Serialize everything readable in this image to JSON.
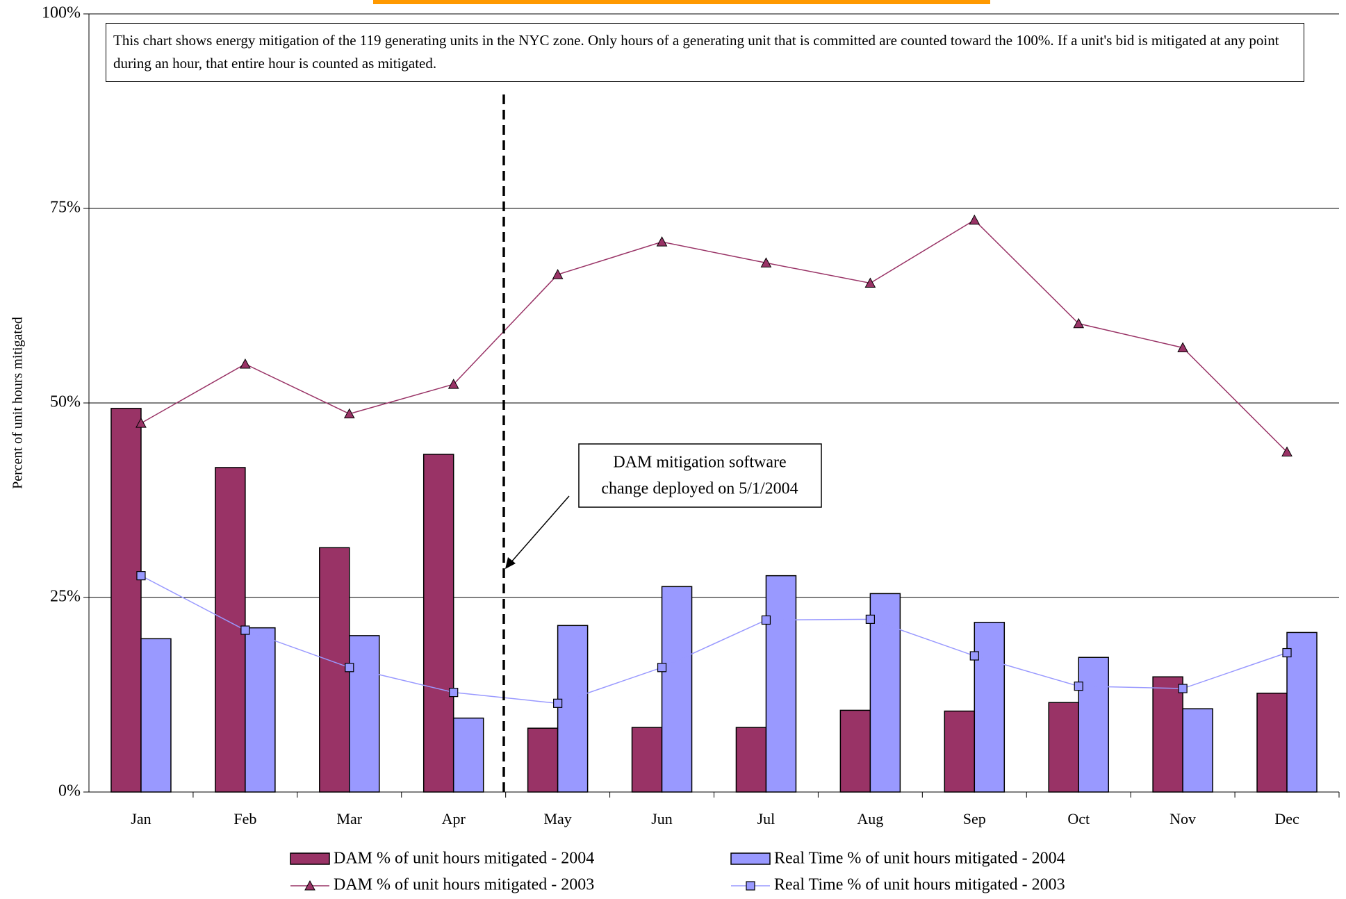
{
  "chart_data": {
    "type": "bar",
    "y_axis_label": "Percent of unit hours mitigated",
    "note": "This chart shows energy mitigation of the 119 generating units in the NYC zone.  Only hours of a generating unit that is committed are counted toward the 100%. If a unit's bid is mitigated at any point during an hour, that entire hour is counted as mitigated.",
    "annotation": [
      "DAM mitigation software",
      "change deployed on 5/1/2004"
    ],
    "categories": [
      "Jan",
      "Feb",
      "Mar",
      "Apr",
      "May",
      "Jun",
      "Jul",
      "Aug",
      "Sep",
      "Oct",
      "Nov",
      "Dec"
    ],
    "ylim": [
      0,
      100
    ],
    "yticks": [
      {
        "value": 0,
        "label": "0%"
      },
      {
        "value": 25,
        "label": "25%"
      },
      {
        "value": 50,
        "label": "50%"
      },
      {
        "value": 75,
        "label": "75%"
      },
      {
        "value": 100,
        "label": "100%"
      }
    ],
    "grid": true,
    "series": [
      {
        "name": "DAM % of unit hours mitigated - 2004",
        "kind": "bar",
        "color": "#993366",
        "values": [
          49.3,
          41.7,
          31.4,
          43.4,
          8.2,
          8.3,
          8.3,
          10.5,
          10.4,
          11.5,
          14.8,
          12.7
        ]
      },
      {
        "name": "Real Time % of unit hours mitigated - 2004",
        "kind": "bar",
        "color": "#9999ff",
        "values": [
          19.7,
          21.1,
          20.1,
          9.5,
          21.4,
          26.4,
          27.8,
          25.5,
          21.8,
          17.3,
          10.7,
          20.5
        ]
      },
      {
        "name": "DAM % of unit hours mitigated - 2003",
        "kind": "line",
        "marker": "triangle",
        "color": "#993366",
        "values": [
          47.4,
          55.0,
          48.6,
          52.4,
          66.5,
          70.7,
          68.0,
          65.4,
          73.5,
          60.2,
          57.1,
          43.7
        ]
      },
      {
        "name": "Real Time % of unit hours mitigated - 2003",
        "kind": "line",
        "marker": "square",
        "color": "#9999ff",
        "values": [
          27.8,
          20.8,
          16.0,
          12.8,
          11.4,
          16.0,
          22.1,
          22.2,
          17.5,
          13.6,
          13.3,
          17.9
        ]
      }
    ]
  }
}
